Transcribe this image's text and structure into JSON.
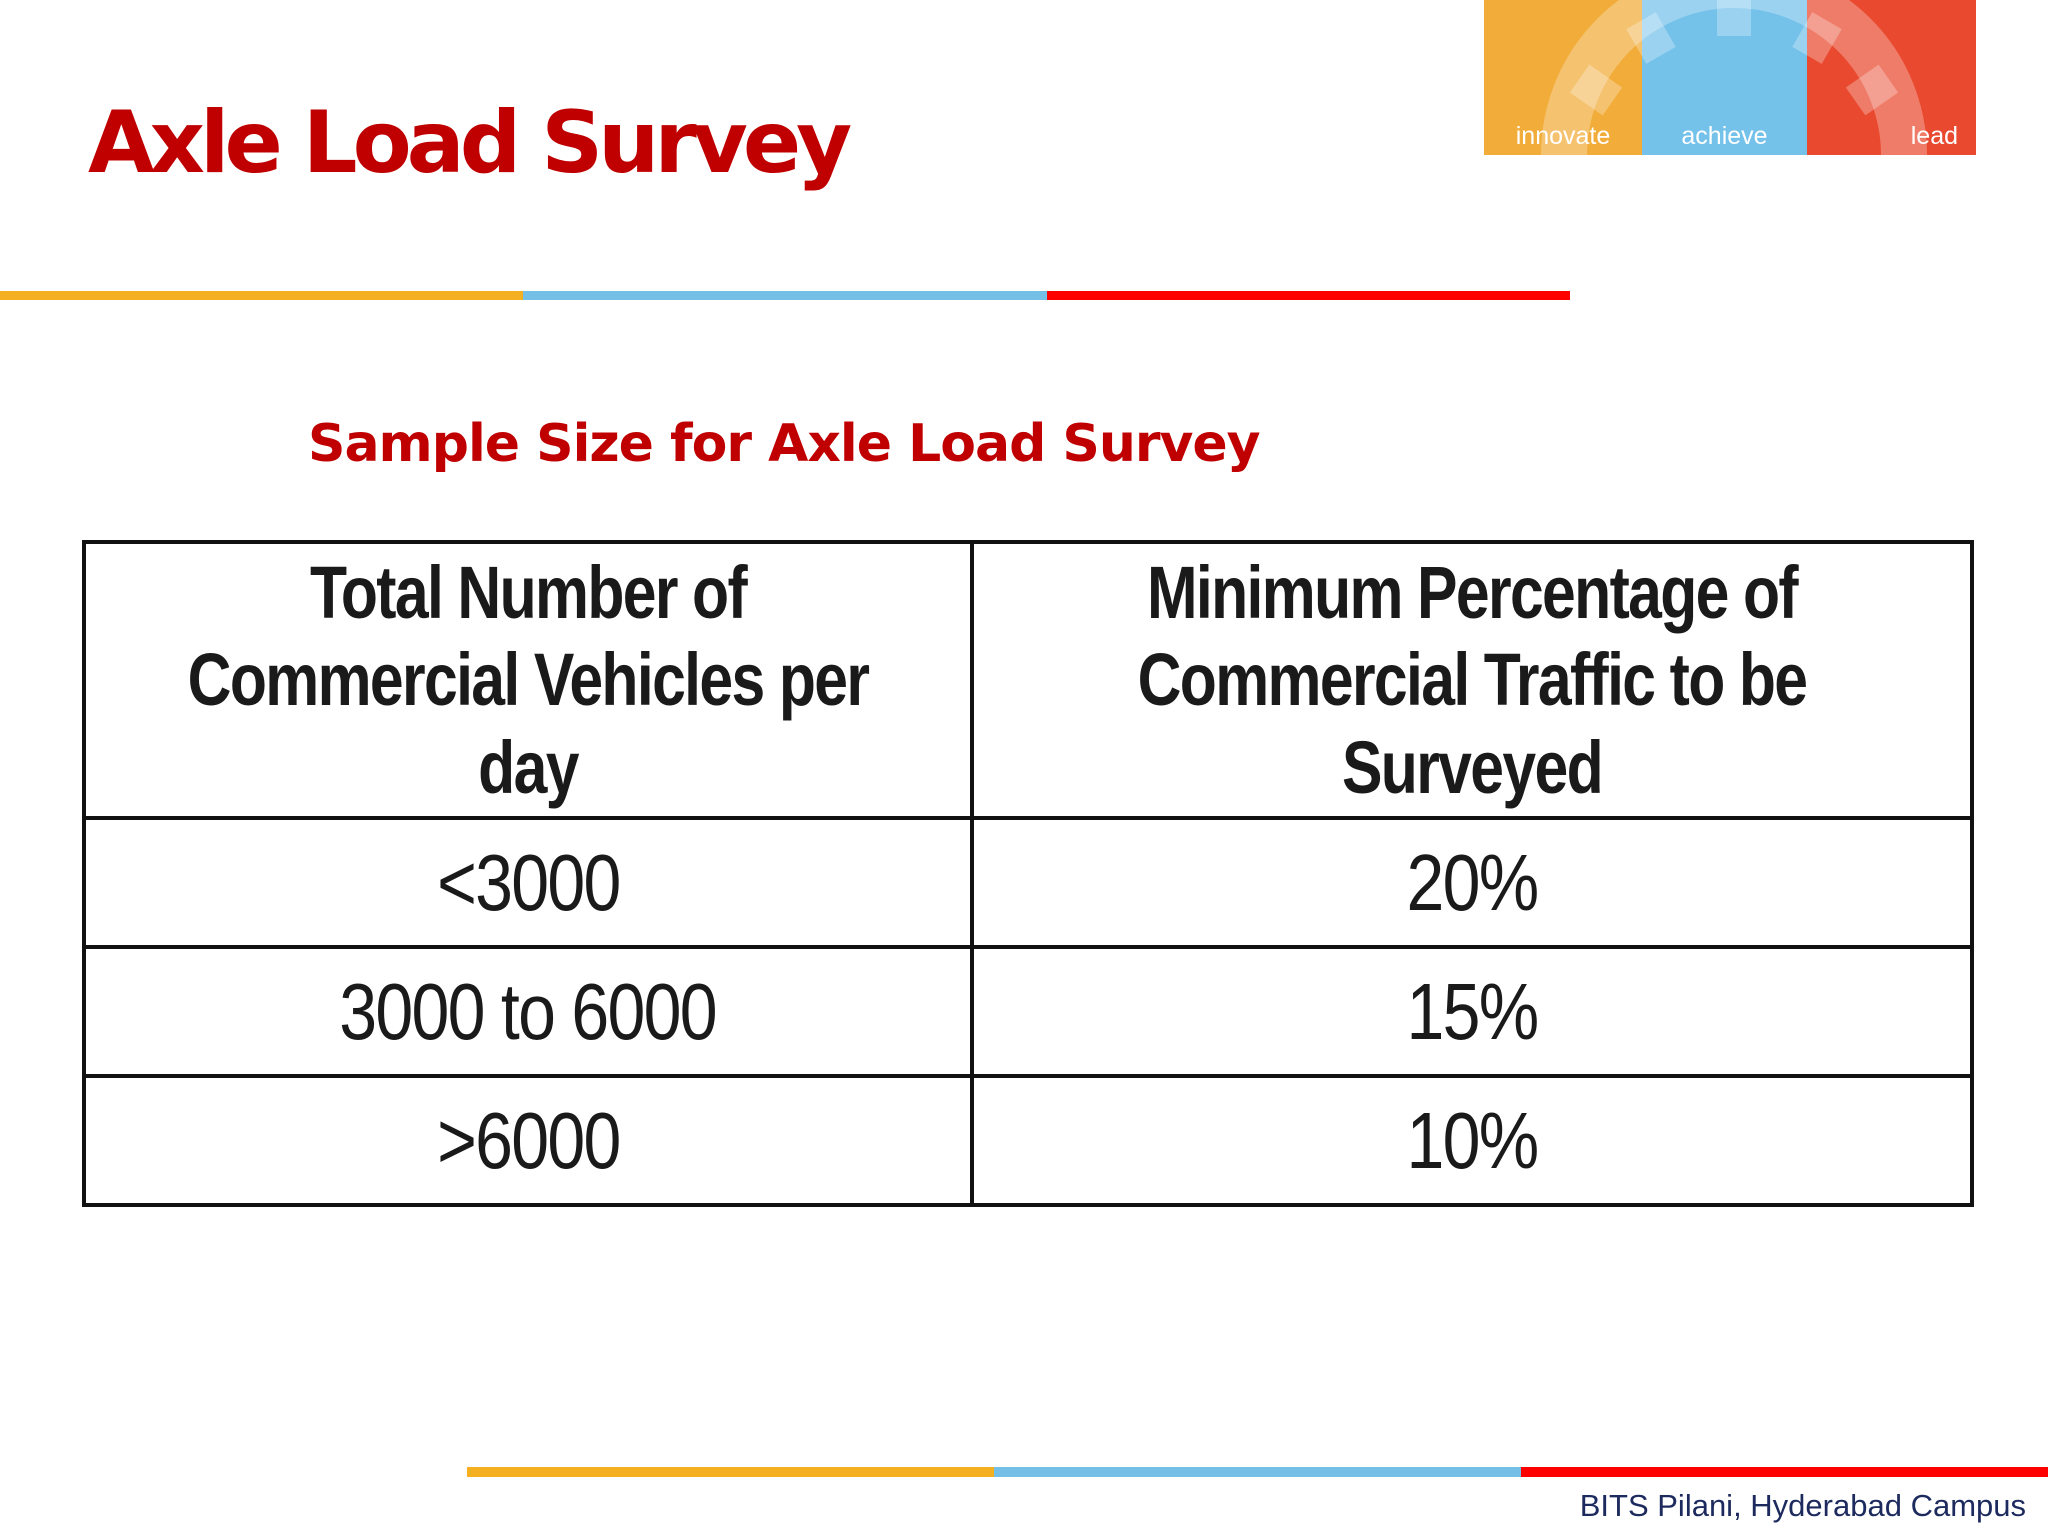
{
  "slide": {
    "title": "Axle Load Survey",
    "subtitle": "Sample Size for Axle Load Survey",
    "footer": "BITS Pilani, Hyderabad Campus"
  },
  "logo": {
    "words": [
      "innovate",
      "achieve",
      "lead"
    ],
    "colors": [
      "#f2ac3a",
      "#74c1ea",
      "#e94a2f"
    ]
  },
  "rules": {
    "colors": [
      "#f5b022",
      "#73bfe6",
      "#ff0000"
    ]
  },
  "table": {
    "headers": [
      "Total Number of Commercial Vehicles per day",
      "Minimum Percentage of Commercial Traffic to be Surveyed"
    ],
    "rows": [
      [
        "<3000",
        "20%"
      ],
      [
        "3000 to 6000",
        "15%"
      ],
      [
        ">6000",
        "10%"
      ]
    ]
  }
}
